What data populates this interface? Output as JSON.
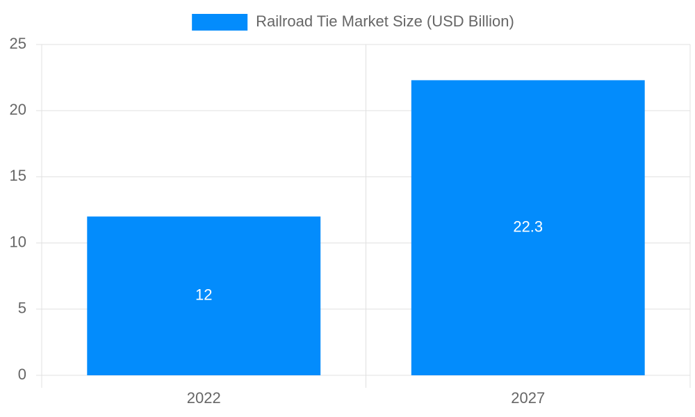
{
  "chart_data": {
    "type": "bar",
    "categories": [
      "2022",
      "2027"
    ],
    "series": [
      {
        "name": "Railroad Tie Market Size (USD Billion)",
        "color": "#038cfc",
        "values": [
          12,
          22.3
        ]
      }
    ],
    "ylim": [
      0,
      25
    ],
    "yticks": [
      0,
      5,
      10,
      15,
      20,
      25
    ],
    "grid": true,
    "legend": "top",
    "data_labels": true
  }
}
